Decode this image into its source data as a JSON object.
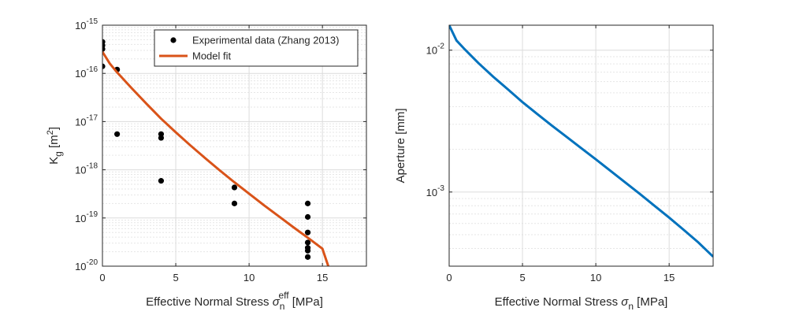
{
  "chart_data": [
    {
      "type": "scatter+line",
      "xlabel": "Effective Normal Stress",
      "xlabel_symbol": "σ",
      "xlabel_sub": "n",
      "xlabel_sup": "eff",
      "xlabel_unit": "[MPa]",
      "ylabel": "K",
      "ylabel_sub": "g",
      "ylabel_unit_pre": "[m",
      "ylabel_unit_sup": "2",
      "ylabel_unit_post": "]",
      "xlim": [
        0,
        18
      ],
      "ylim": [
        1e-20,
        1e-15
      ],
      "yscale": "log",
      "grid": true,
      "minor_grid": true,
      "x_ticks": [
        0,
        5,
        10,
        15
      ],
      "y_ticks": [
        {
          "base": "10",
          "exp": "-20",
          "value": 1e-20
        },
        {
          "base": "10",
          "exp": "-19",
          "value": 1e-19
        },
        {
          "base": "10",
          "exp": "-18",
          "value": 1e-18
        },
        {
          "base": "10",
          "exp": "-17",
          "value": 1e-17
        },
        {
          "base": "10",
          "exp": "-16",
          "value": 1e-16
        },
        {
          "base": "10",
          "exp": "-15",
          "value": 1e-15
        }
      ],
      "legend_position": "top-right",
      "series": [
        {
          "name": "Experimental data (Zhang 2013)",
          "kind": "markers",
          "color": "#000000",
          "points": [
            [
              0,
              4.5e-16
            ],
            [
              0,
              3.8e-16
            ],
            [
              0,
              3.2e-16
            ],
            [
              0,
              1.4e-16
            ],
            [
              1,
              1.2e-16
            ],
            [
              1,
              5.5e-18
            ],
            [
              4,
              5.5e-18
            ],
            [
              4,
              4.6e-18
            ],
            [
              4,
              5.9e-19
            ],
            [
              9,
              4.3e-19
            ],
            [
              9,
              2e-19
            ],
            [
              14,
              2e-19
            ],
            [
              14,
              1.05e-19
            ],
            [
              14,
              5e-20
            ],
            [
              14,
              3.1e-20
            ],
            [
              14,
              2.4e-20
            ],
            [
              14,
              2.1e-20
            ],
            [
              14,
              1.55e-20
            ]
          ]
        },
        {
          "name": "Model fit",
          "kind": "line",
          "color": "#D95319",
          "x": [
            0,
            0.5,
            1,
            2,
            3,
            4,
            5,
            6,
            7,
            8,
            9,
            10,
            11,
            12,
            13,
            14,
            15,
            15.4
          ],
          "y": [
            2.8e-16,
            1.6e-16,
            1.05e-16,
            4.9e-17,
            2.35e-17,
            1.15e-17,
            6e-18,
            3.2e-18,
            1.75e-18,
            9.7e-19,
            5.5e-19,
            3.2e-19,
            1.85e-19,
            1.1e-19,
            6.5e-20,
            3.9e-20,
            2.3e-20,
            1e-20
          ]
        }
      ]
    },
    {
      "type": "line",
      "xlabel": "Effective Normal Stress",
      "xlabel_symbol": "σ",
      "xlabel_sub": "n",
      "xlabel_unit": "[MPa]",
      "ylabel": "Aperture [mm]",
      "xlim": [
        0,
        18
      ],
      "ylim": [
        0.0003,
        0.015
      ],
      "yscale": "log",
      "grid": true,
      "minor_grid": true,
      "x_ticks": [
        0,
        5,
        10,
        15
      ],
      "y_ticks": [
        {
          "base": "10",
          "exp": "-3",
          "value": 0.001
        },
        {
          "base": "10",
          "exp": "-2",
          "value": 0.01
        }
      ],
      "series": [
        {
          "name": "Aperture",
          "color": "#0072BD",
          "x": [
            0,
            0.5,
            1,
            2,
            3,
            4,
            5,
            6,
            7,
            8,
            9,
            10,
            11,
            12,
            13,
            14,
            15,
            16,
            17,
            18
          ],
          "y": [
            0.015,
            0.0117,
            0.0103,
            0.0081,
            0.0065,
            0.0053,
            0.0043,
            0.00355,
            0.00294,
            0.00245,
            0.00204,
            0.0017,
            0.00141,
            0.00117,
            0.00097,
            0.0008,
            0.00066,
            0.00054,
            0.00044,
            0.00035
          ]
        }
      ]
    }
  ]
}
